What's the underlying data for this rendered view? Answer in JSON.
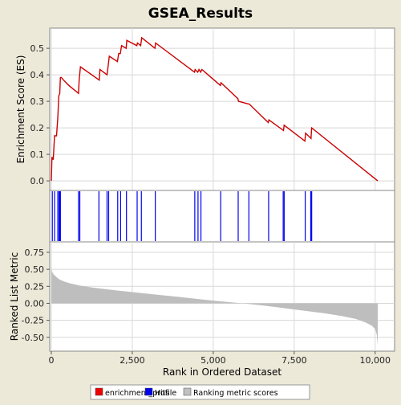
{
  "chart_data": {
    "title": "GSEA_Results",
    "type": "line",
    "x_axis": {
      "label": "Rank in Ordered Dataset",
      "range": [
        0,
        10550
      ],
      "ticks": [
        0,
        2500,
        5000,
        7500,
        10000
      ],
      "tick_labels": [
        "0",
        "2,500",
        "5,000",
        "7,500",
        "10,000"
      ]
    },
    "es_panel": {
      "ylabel": "Enrichment Score (ES)",
      "ylim": [
        -0.03,
        0.57
      ],
      "yticks": [
        0.0,
        0.1,
        0.2,
        0.3,
        0.4,
        0.5
      ],
      "ytick_labels": [
        "0.0",
        "0.1",
        "0.2",
        "0.3",
        "0.4",
        "0.5"
      ],
      "grid": true,
      "series_color": "#cc0000",
      "x": [
        0,
        20,
        60,
        100,
        160,
        200,
        230,
        260,
        280,
        310,
        380,
        540,
        840,
        860,
        900,
        1480,
        1500,
        1720,
        1760,
        1790,
        2040,
        2080,
        2130,
        2170,
        2310,
        2330,
        2640,
        2660,
        2760,
        2790,
        3200,
        3220,
        4420,
        4440,
        4520,
        4560,
        4610,
        4650,
        5220,
        5240,
        5760,
        5780,
        6090,
        6110,
        6700,
        6720,
        7170,
        7190,
        7830,
        7850,
        8020,
        8040,
        10080
      ],
      "y": [
        0.0,
        0.09,
        0.08,
        0.17,
        0.17,
        0.24,
        0.32,
        0.33,
        0.39,
        0.39,
        0.38,
        0.36,
        0.33,
        0.38,
        0.43,
        0.38,
        0.42,
        0.4,
        0.44,
        0.47,
        0.45,
        0.48,
        0.48,
        0.51,
        0.5,
        0.53,
        0.51,
        0.52,
        0.51,
        0.54,
        0.5,
        0.52,
        0.41,
        0.42,
        0.41,
        0.42,
        0.41,
        0.42,
        0.36,
        0.37,
        0.31,
        0.3,
        0.29,
        0.29,
        0.22,
        0.23,
        0.19,
        0.21,
        0.15,
        0.18,
        0.16,
        0.2,
        0.0
      ]
    },
    "hits_panel": {
      "color": "#0000ee",
      "positions": [
        30,
        100,
        200,
        240,
        260,
        280,
        840,
        880,
        1470,
        1720,
        1770,
        2050,
        2140,
        2320,
        2650,
        2780,
        3210,
        4430,
        4530,
        4620,
        5230,
        5770,
        6100,
        6710,
        7160,
        7190,
        7840,
        8010,
        8040
      ]
    },
    "metric_panel": {
      "ylabel": "Ranked List Metric",
      "ylim": [
        -0.68,
        0.88
      ],
      "yticks": [
        0.75,
        0.5,
        0.25,
        0.0,
        -0.25,
        -0.5
      ],
      "ytick_labels": [
        "0.75",
        "0.50",
        "0.25",
        "0.00",
        "-0.25",
        "-0.50"
      ],
      "grid": true,
      "fill_color": "#bebebe",
      "x": [
        0,
        15,
        40,
        80,
        150,
        250,
        400,
        600,
        900,
        1300,
        2000,
        3000,
        4000,
        5000,
        5900,
        6500,
        7000,
        7500,
        8000,
        8500,
        9000,
        9400,
        9700,
        9900,
        10000,
        10050,
        10080
      ],
      "y": [
        0.55,
        0.48,
        0.45,
        0.42,
        0.39,
        0.35,
        0.32,
        0.29,
        0.26,
        0.23,
        0.19,
        0.14,
        0.09,
        0.04,
        0.0,
        -0.03,
        -0.06,
        -0.09,
        -0.12,
        -0.15,
        -0.19,
        -0.23,
        -0.28,
        -0.33,
        -0.38,
        -0.46,
        -0.62
      ]
    },
    "legend": {
      "placement": "bottom",
      "items": [
        {
          "label": "enrichment_profile",
          "color": "#ee0000"
        },
        {
          "label": "Hits",
          "color": "#0000ee"
        },
        {
          "label": "Ranking metric scores",
          "color": "#c0c0c0"
        }
      ]
    }
  }
}
